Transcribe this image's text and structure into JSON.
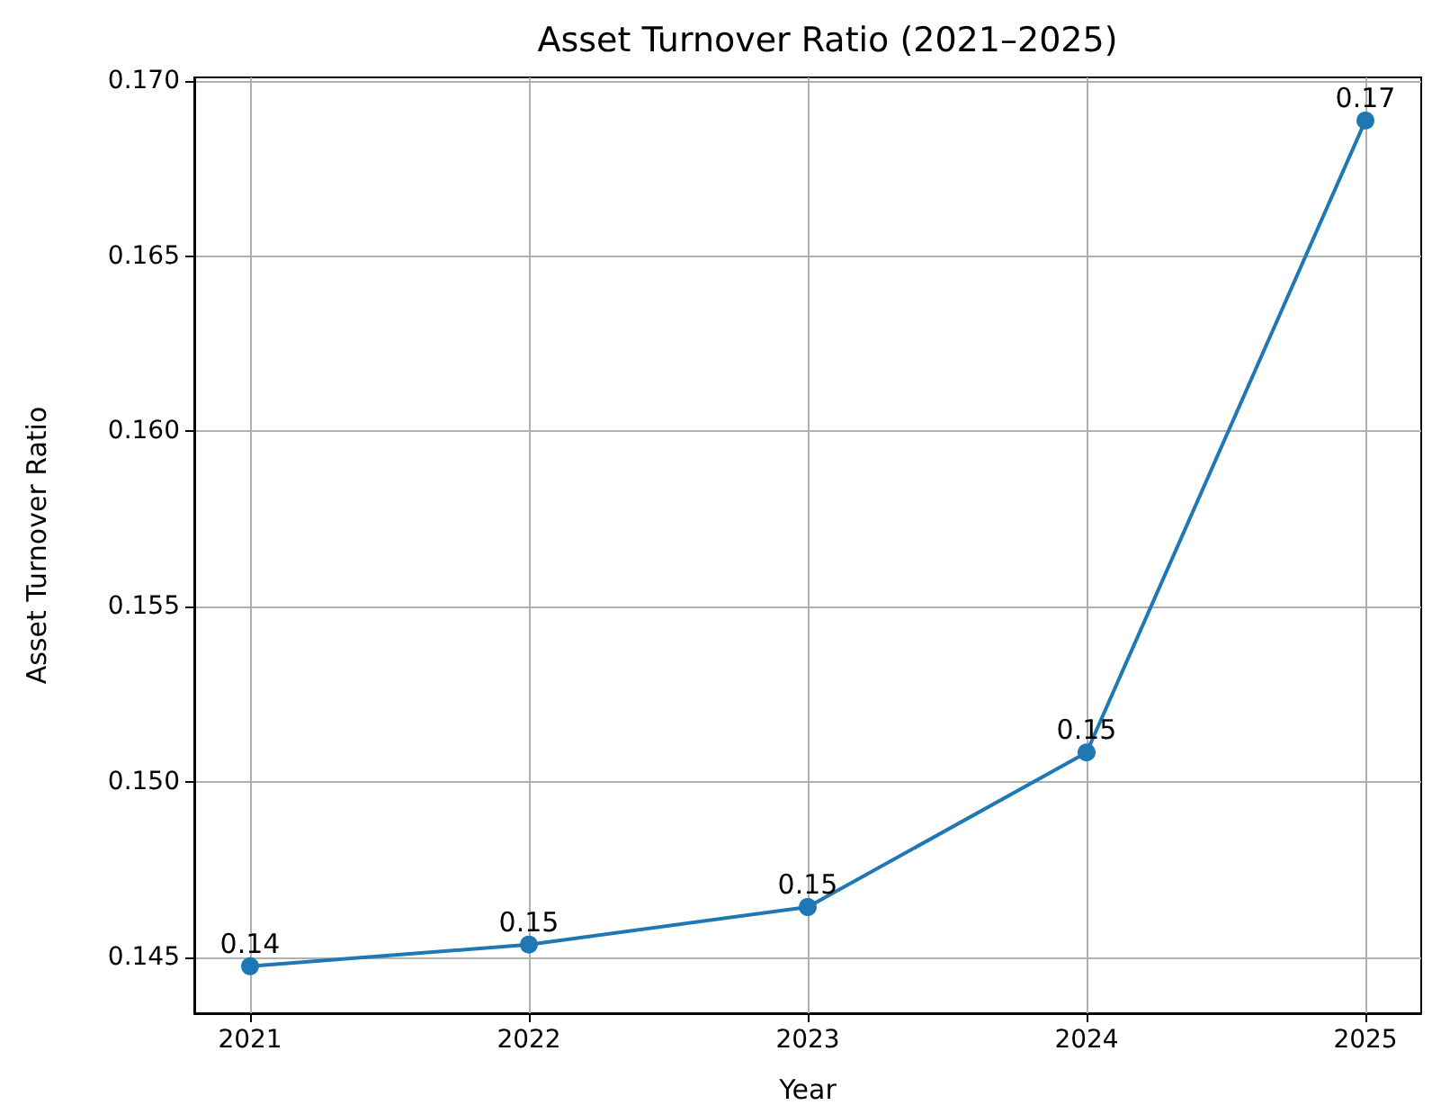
{
  "chart_data": {
    "type": "line",
    "title": "Asset Turnover Ratio (2021–2025)",
    "xlabel": "Year",
    "ylabel": "Asset Turnover Ratio",
    "x": [
      2021,
      2022,
      2023,
      2024,
      2025
    ],
    "series": [
      {
        "color": "#1f77b4",
        "values": [
          0.14474,
          0.14536,
          0.14643,
          0.15084,
          0.16887
        ],
        "value_labels": [
          "0.14",
          "0.15",
          "0.15",
          "0.15",
          "0.17"
        ]
      }
    ],
    "xlim": [
      2020.8,
      2025.2
    ],
    "xticks": [
      2021,
      2022,
      2023,
      2024,
      2025
    ],
    "ylim": [
      0.1434,
      0.1701
    ],
    "yticks": [
      0.145,
      {
        "value": 0.15,
        "label": "0.150"
      },
      0.155,
      {
        "value": 0.16,
        "label": "0.160"
      },
      0.165,
      {
        "value": 0.17,
        "label": "0.170"
      }
    ],
    "grid": true,
    "marker": "circle",
    "line_style": "solid"
  }
}
